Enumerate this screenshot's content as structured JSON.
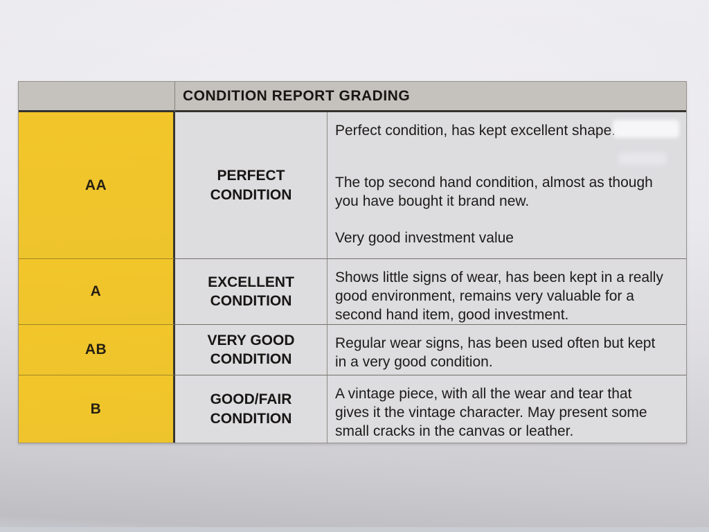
{
  "grading_table": {
    "title": "CONDITION REPORT GRADING",
    "rows": [
      {
        "grade": "AA",
        "name": "PERFECT CONDITION",
        "paragraphs": [
          "Perfect condition, has kept excellent shape.",
          "The top second hand condition, almost as though you have bought it brand new.",
          "Very good investment value"
        ]
      },
      {
        "grade": "A",
        "name": "EXCELLENT CONDITION",
        "paragraphs": [
          "Shows little signs of wear, has been kept in a really good environment, remains very valuable for a second hand item, good investment."
        ]
      },
      {
        "grade": "AB",
        "name": "VERY GOOD CONDITION",
        "paragraphs": [
          "Regular wear signs, has been used often but kept in a very good condition."
        ]
      },
      {
        "grade": "B",
        "name": "GOOD/FAIR CONDITION",
        "paragraphs": [
          "A vintage piece, with all the wear and tear that gives it the vintage character. May present some small cracks in the canvas or leather."
        ]
      }
    ],
    "colors": {
      "grade_column_yellow": "#F0C52B",
      "header_gray": "#C5C2BD",
      "cell_gray": "#DDDCDF",
      "paper": "#E9E8ED",
      "text": "#1C1A18"
    }
  }
}
